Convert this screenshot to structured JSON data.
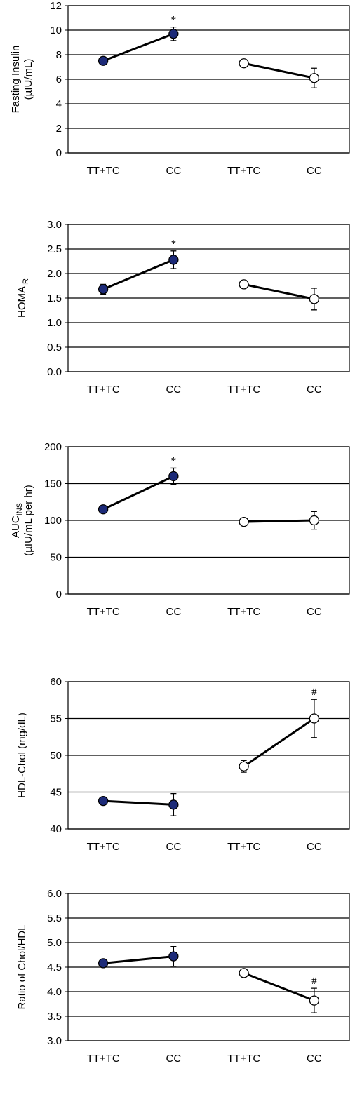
{
  "chart_data": [
    {
      "type": "line",
      "categories": [
        "TT+TC",
        "CC",
        "TT+TC",
        "CC"
      ],
      "ylabel": [
        {
          "text": "Fasting Insulin"
        },
        {
          "text": "(µIU/mL)"
        }
      ],
      "ylim": [
        0,
        12
      ],
      "yticks": [
        0,
        2,
        4,
        6,
        8,
        10,
        12
      ],
      "grid": true,
      "series": [
        {
          "color": "#1c2a78",
          "values": [
            7.5,
            9.7,
            null,
            null
          ],
          "errors": [
            0.3,
            0.55,
            null,
            null
          ],
          "value_annotations": [
            null,
            "*",
            null,
            null
          ]
        },
        {
          "color": "#ffffff",
          "values": [
            null,
            null,
            7.3,
            6.1
          ],
          "errors": [
            null,
            null,
            0.2,
            0.8
          ]
        }
      ]
    },
    {
      "type": "line",
      "categories": [
        "TT+TC",
        "CC",
        "TT+TC",
        "CC"
      ],
      "ylabel": [
        {
          "text": "HOMA",
          "sub": "IR"
        }
      ],
      "ylim": [
        0,
        3
      ],
      "yticks": [
        {
          "value": 0,
          "label": "0.0"
        },
        0.5,
        {
          "value": 1,
          "label": "1.0"
        },
        1.5,
        {
          "value": 2,
          "label": "2.0"
        },
        2.5,
        {
          "value": 3,
          "label": "3.0"
        }
      ],
      "grid": true,
      "series": [
        {
          "color": "#1c2a78",
          "values": [
            1.68,
            2.28,
            null,
            null
          ],
          "errors": [
            0.1,
            0.18,
            null,
            null
          ],
          "value_annotations": [
            null,
            "*",
            null,
            null
          ]
        },
        {
          "color": "#ffffff",
          "values": [
            null,
            null,
            1.78,
            1.48
          ],
          "errors": [
            null,
            null,
            0.08,
            0.22
          ]
        }
      ]
    },
    {
      "type": "line",
      "categories": [
        "TT+TC",
        "CC",
        "TT+TC",
        "CC"
      ],
      "ylabel": [
        {
          "text": "AUC",
          "sub": "INS"
        },
        {
          "text": "(µIU/mL per hr)"
        }
      ],
      "ylim": [
        0,
        200
      ],
      "yticks": [
        0,
        50,
        100,
        150,
        200
      ],
      "grid": true,
      "series": [
        {
          "color": "#1c2a78",
          "values": [
            115,
            160,
            null,
            null
          ],
          "errors": [
            3,
            11,
            null,
            null
          ],
          "value_annotations": [
            null,
            "*",
            null,
            null
          ]
        },
        {
          "color": "#ffffff",
          "values": [
            null,
            null,
            98,
            100
          ],
          "errors": [
            null,
            null,
            4,
            12
          ]
        }
      ]
    },
    {
      "type": "line",
      "categories": [
        "TT+TC",
        "CC",
        "TT+TC",
        "CC"
      ],
      "ylabel": [
        {
          "text": "HDL-Chol (mg/dL)"
        }
      ],
      "ylim": [
        40,
        60
      ],
      "yticks": [
        40,
        45,
        50,
        55,
        60
      ],
      "grid": true,
      "series": [
        {
          "color": "#1c2a78",
          "values": [
            43.8,
            43.3,
            null,
            null
          ],
          "errors": [
            0.3,
            1.5,
            null,
            null
          ]
        },
        {
          "color": "#ffffff",
          "values": [
            null,
            null,
            48.5,
            55
          ],
          "errors": [
            null,
            null,
            0.8,
            2.6
          ],
          "value_annotations": [
            null,
            null,
            null,
            "#"
          ]
        }
      ]
    },
    {
      "type": "line",
      "categories": [
        "TT+TC",
        "CC",
        "TT+TC",
        "CC"
      ],
      "ylabel": [
        {
          "text": "Ratio of Chol/HDL"
        }
      ],
      "ylim": [
        3,
        6
      ],
      "yticks": [
        {
          "value": 3,
          "label": "3.0"
        },
        3.5,
        {
          "value": 4,
          "label": "4.0"
        },
        4.5,
        {
          "value": 5,
          "label": "5.0"
        },
        5.5,
        {
          "value": 6,
          "label": "6.0"
        }
      ],
      "grid": true,
      "series": [
        {
          "color": "#1c2a78",
          "values": [
            4.58,
            4.72,
            null,
            null
          ],
          "errors": [
            0.05,
            0.2,
            null,
            null
          ]
        },
        {
          "color": "#ffffff",
          "values": [
            null,
            null,
            4.38,
            3.82
          ],
          "errors": [
            null,
            null,
            0.05,
            0.25
          ],
          "value_annotations": [
            null,
            null,
            null,
            "#"
          ]
        }
      ]
    }
  ]
}
